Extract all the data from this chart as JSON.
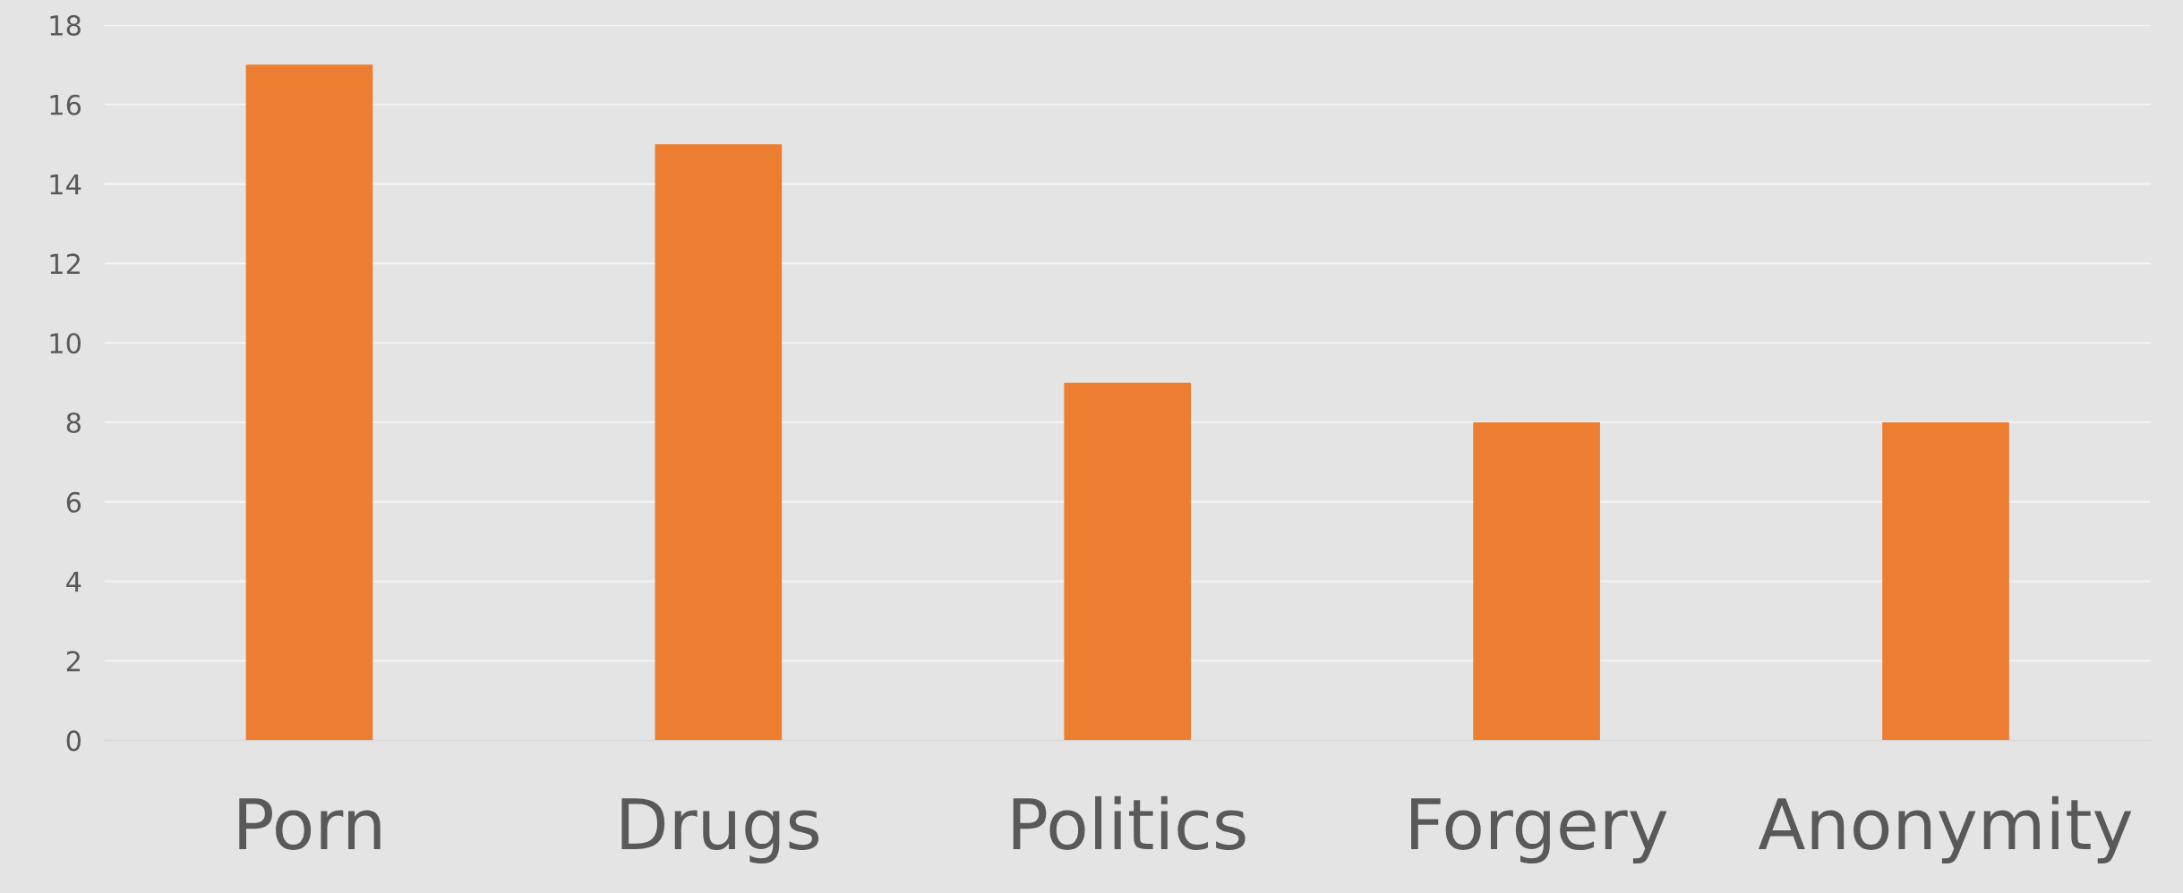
{
  "chart_data": {
    "type": "bar",
    "categories": [
      "Porn",
      "Drugs",
      "Politics",
      "Forgery",
      "Anonymity"
    ],
    "values": [
      17,
      15,
      9,
      8,
      8
    ],
    "color": "#ed7d31",
    "ylim": [
      0,
      18
    ],
    "yticks": [
      0,
      2,
      4,
      6,
      8,
      10,
      12,
      14,
      16,
      18
    ],
    "grid": "y"
  }
}
